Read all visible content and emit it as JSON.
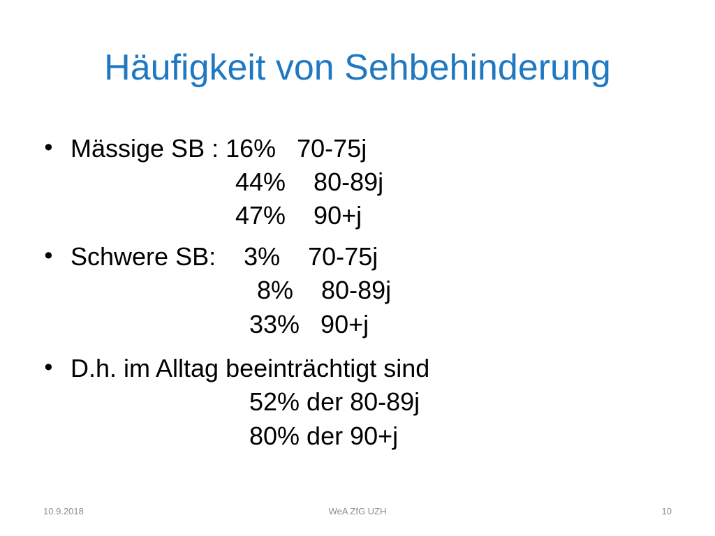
{
  "slide": {
    "title": "Häufigkeit von Sehbehinderung",
    "bullet_glyph": "•",
    "bullets": [
      {
        "label": "Mässige SB : 16%   70-75j",
        "lines": [
          "44%    80-89j",
          "47%    90+j"
        ]
      },
      {
        "label": "Schwere SB:    3%    70-75j",
        "lines": [
          "8%    80-89j",
          "33%   90+j"
        ]
      },
      {
        "label": "D.h. im Alltag beeinträchtigt sind",
        "lines": [
          "52% der 80-89j",
          "80% der 90+j"
        ]
      }
    ]
  },
  "footer": {
    "date": "10.9.2018",
    "center": "WeA ZfG UZH",
    "page": "10"
  },
  "colors": {
    "title": "#1f78c1",
    "body_text": "#000000",
    "footer_text": "#8c8c8c",
    "background": "#ffffff"
  }
}
